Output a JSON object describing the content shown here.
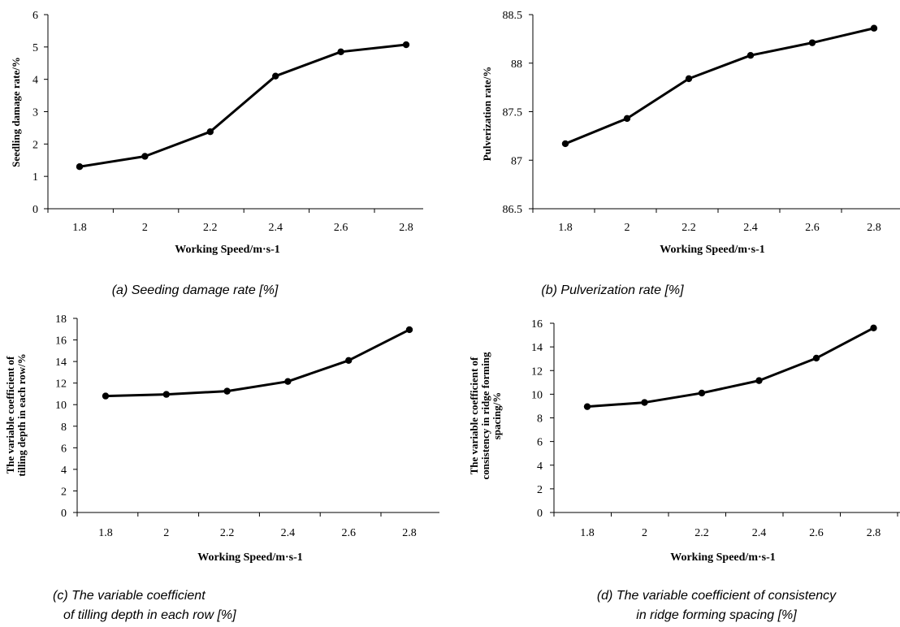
{
  "chart_data": [
    {
      "id": "a",
      "type": "line",
      "x": [
        1.8,
        2,
        2.2,
        2.4,
        2.6,
        2.8
      ],
      "x_tick_labels": [
        "1.8",
        "2",
        "2.2",
        "2.4",
        "2.6",
        "2.8"
      ],
      "series": [
        {
          "values": [
            1.3,
            1.62,
            2.38,
            4.1,
            4.85,
            5.07
          ]
        }
      ],
      "ylim": [
        0,
        6
      ],
      "y_ticks": [
        0,
        1,
        2,
        3,
        4,
        5,
        6
      ],
      "y_tick_labels": [
        "0",
        "1",
        "2",
        "3",
        "4",
        "5",
        "6"
      ],
      "xlabel": "Working Speed/m·s-1",
      "ylabel": [
        "Seedling damage rate/%"
      ],
      "caption": [
        "(a) Seeding damage rate [%]"
      ],
      "grid": false
    },
    {
      "id": "b",
      "type": "line",
      "x": [
        1.8,
        2,
        2.2,
        2.4,
        2.6,
        2.8
      ],
      "x_tick_labels": [
        "1.8",
        "2",
        "2.2",
        "2.4",
        "2.6",
        "2.8"
      ],
      "series": [
        {
          "values": [
            87.17,
            87.43,
            87.84,
            88.08,
            88.21,
            88.36
          ]
        }
      ],
      "ylim": [
        86.5,
        88.5
      ],
      "y_ticks": [
        86.5,
        87,
        87.5,
        88,
        88.5
      ],
      "y_tick_labels": [
        "86.5",
        "87",
        "87.5",
        "88",
        "88.5"
      ],
      "xlabel": "Working Speed/m·s-1",
      "ylabel": [
        "Pulverization rate/%"
      ],
      "caption": [
        "(b) Pulverization rate [%]"
      ],
      "grid": false
    },
    {
      "id": "c",
      "type": "line",
      "x": [
        1.8,
        2,
        2.2,
        2.4,
        2.6,
        2.8
      ],
      "x_tick_labels": [
        "1.8",
        "2",
        "2.2",
        "2.4",
        "2.6",
        "2.8"
      ],
      "series": [
        {
          "values": [
            10.8,
            10.95,
            11.25,
            12.15,
            14.1,
            16.95
          ]
        }
      ],
      "ylim": [
        0,
        18
      ],
      "y_ticks": [
        0,
        2,
        4,
        6,
        8,
        10,
        12,
        14,
        16,
        18
      ],
      "y_tick_labels": [
        "0",
        "2",
        "4",
        "6",
        "8",
        "10",
        "12",
        "14",
        "16",
        "18"
      ],
      "xlabel": "Working Speed/m·s-1",
      "ylabel": [
        "The variable coefficient of",
        "tilling depth in each row/%"
      ],
      "caption": [
        "(c) The variable coefficient",
        "of tilling depth in each row [%]"
      ],
      "grid": false
    },
    {
      "id": "d",
      "type": "line",
      "x": [
        1.8,
        2,
        2.2,
        2.4,
        2.6,
        2.8
      ],
      "x_tick_labels": [
        "1.8",
        "2",
        "2.2",
        "2.4",
        "2.6",
        "2.8"
      ],
      "series": [
        {
          "values": [
            8.95,
            9.3,
            10.1,
            11.15,
            13.05,
            15.6
          ]
        }
      ],
      "ylim": [
        0,
        16
      ],
      "y_ticks": [
        0,
        2,
        4,
        6,
        8,
        10,
        12,
        14,
        16
      ],
      "y_tick_labels": [
        "0",
        "2",
        "4",
        "6",
        "8",
        "10",
        "12",
        "14",
        "16"
      ],
      "xlabel": "Working Speed/m·s-1",
      "ylabel": [
        "The variable coefficient of",
        "consistency in ridge forming",
        "spacing/%"
      ],
      "caption": [
        "(d) The variable coefficient of consistency",
        "in ridge forming spacing [%]"
      ],
      "grid": false
    }
  ]
}
